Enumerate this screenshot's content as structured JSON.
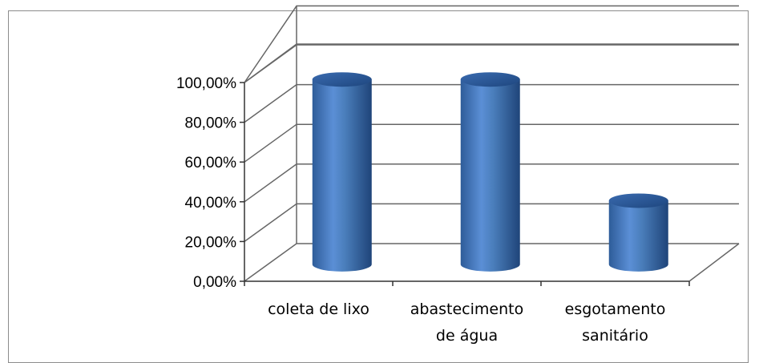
{
  "chart_data": {
    "type": "bar",
    "style": "3d-cylinder",
    "title": "",
    "xlabel": "",
    "ylabel": "",
    "categories": [
      [
        "coleta de lixo"
      ],
      [
        "abastecimento",
        "de água"
      ],
      [
        "esgotamento",
        "sanitário"
      ]
    ],
    "values": [
      0.93,
      0.93,
      0.32
    ],
    "ylim": [
      0,
      1
    ],
    "yticks": [
      0,
      0.2,
      0.4,
      0.6,
      0.8,
      1.0
    ],
    "ytick_labels": [
      "0,00%",
      "20,00%",
      "40,00%",
      "60,00%",
      "80,00%",
      "100,00%"
    ],
    "bar_color": "#4a7ebb",
    "grid": true,
    "legend": "none"
  }
}
